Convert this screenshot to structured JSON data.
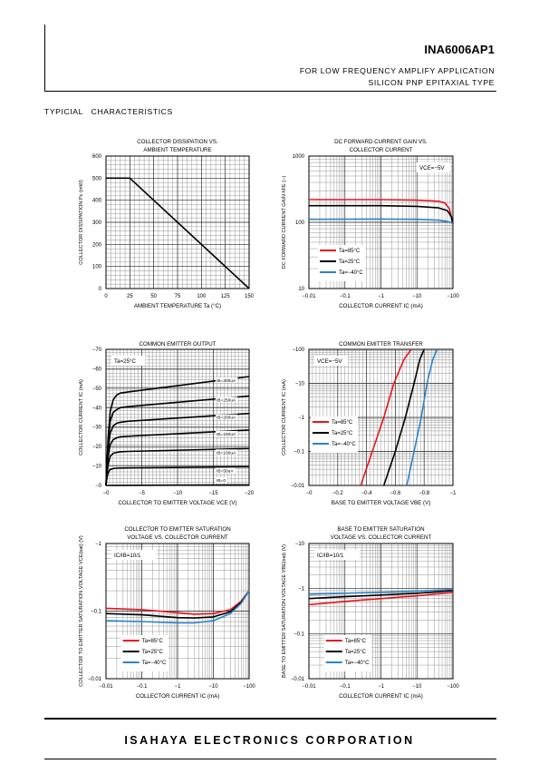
{
  "header": {
    "part_number": "INA6006AP1",
    "line1": "FOR LOW FREQUENCY AMPLIFY APPLICATION",
    "line2": "SILICON PNP EPITAXIAL TYPE"
  },
  "section_title": "TYPICIAL   CHARACTERISTICS",
  "footer": {
    "company": "ISAHAYA ELECTRONICS CORPORATION"
  },
  "chart_data": [
    {
      "id": "c1",
      "type": "line",
      "title": [
        "COLLECTOR DISSIPATION VS.",
        "AMBIENT TEMPERATURE"
      ],
      "xlabel": "AMBIENT TEMPERATURE  Ta (°C)",
      "ylabel": "COLLECTOR DISSIPATION  Pc (mW)",
      "xscale": "lin",
      "yscale": "lin",
      "xlim": [
        0,
        150
      ],
      "ylim": [
        0,
        600
      ],
      "xticks": [
        0,
        25,
        50,
        75,
        100,
        125,
        150
      ],
      "xticklabels": [
        "0",
        "25",
        "50",
        "75",
        "100",
        "125",
        "150"
      ],
      "yticks": [
        0,
        100,
        200,
        300,
        400,
        500,
        600
      ],
      "yticklabels": [
        "0",
        "100",
        "200",
        "300",
        "400",
        "500",
        "600"
      ],
      "series": [
        {
          "color": "#000000",
          "x": [
            0,
            25,
            150
          ],
          "y": [
            500,
            500,
            0
          ]
        }
      ],
      "annotations": []
    },
    {
      "id": "c2",
      "type": "line",
      "title": [
        "DC FORWARD CURRENT GAIN VS.",
        "COLLECTOR CURRENT"
      ],
      "xlabel": "COLLECTOR CURRENT  IC (mA)",
      "ylabel": "DC FORWARD CURRENT GAIN  hFE (−)",
      "xscale": "log",
      "yscale": "log",
      "xlim": [
        0.01,
        100
      ],
      "ylim": [
        10,
        1000
      ],
      "xticks": [
        0.01,
        0.1,
        1,
        10,
        100
      ],
      "xticklabels": [
        "−0.01",
        "−0.1",
        "−1",
        "−10",
        "−100"
      ],
      "yticks": [
        10,
        100,
        1000
      ],
      "yticklabels": [
        "10",
        "100",
        "1000"
      ],
      "series": [
        {
          "name": "Ta=85°C",
          "color": "#e8141c",
          "x": [
            0.01,
            1,
            10,
            40,
            60,
            80,
            100
          ],
          "y": [
            220,
            220,
            216,
            208,
            195,
            160,
            95
          ]
        },
        {
          "name": "Ta=25°C",
          "color": "#000000",
          "x": [
            0.01,
            1,
            10,
            40,
            70,
            90,
            100
          ],
          "y": [
            178,
            178,
            174,
            165,
            150,
            122,
            95
          ]
        },
        {
          "name": "Ta=−40°C",
          "color": "#2b83c8",
          "x": [
            0.01,
            1,
            10,
            40,
            70,
            100
          ],
          "y": [
            111,
            112,
            111,
            108,
            103,
            97
          ]
        }
      ],
      "annotations": [
        "VCE=−5V"
      ],
      "legend_position": "bottom-left"
    },
    {
      "id": "c3",
      "type": "line",
      "title": [
        "COMMON EMITTER OUTPUT"
      ],
      "xlabel": "COLLECTOR TO EMITTER VOLTAGE  VCE (V)",
      "ylabel": "COLLECTOR CURRENT  IC (mA)",
      "xscale": "lin",
      "yscale": "lin",
      "xlim": [
        0,
        20
      ],
      "ylim": [
        0,
        70
      ],
      "xticks": [
        0,
        5,
        10,
        15,
        20
      ],
      "xticklabels": [
        "−0",
        "−5",
        "−10",
        "−15",
        "−20"
      ],
      "yticks": [
        0,
        10,
        20,
        30,
        40,
        50,
        60,
        70
      ],
      "yticklabels": [
        "−0",
        "−10",
        "−20",
        "−30",
        "−40",
        "−50",
        "−60",
        "−70"
      ],
      "series": [
        {
          "name": "IB=300uA",
          "color": "#000000",
          "x": [
            0,
            0.12,
            0.3,
            0.6,
            1,
            1.5,
            2,
            3,
            20
          ],
          "y": [
            0,
            10,
            25,
            38,
            44,
            46.5,
            47.5,
            48,
            56
          ]
        },
        {
          "name": "IB=250uA",
          "color": "#000000",
          "x": [
            0,
            0.12,
            0.3,
            0.6,
            1,
            1.5,
            2,
            3,
            20
          ],
          "y": [
            0,
            9,
            22,
            33,
            37.5,
            39,
            40,
            40.5,
            46
          ]
        },
        {
          "name": "IB=200uA",
          "color": "#000000",
          "x": [
            0,
            0.12,
            0.3,
            0.6,
            1,
            1.5,
            2,
            3,
            20
          ],
          "y": [
            0,
            8,
            19,
            27,
            30.5,
            32,
            32.5,
            33,
            37
          ]
        },
        {
          "name": "IB=150uA",
          "color": "#000000",
          "x": [
            0,
            0.12,
            0.3,
            0.6,
            1,
            1.5,
            2,
            3,
            20
          ],
          "y": [
            0,
            7,
            15,
            21,
            23.5,
            24.5,
            25,
            25.3,
            28.5
          ]
        },
        {
          "name": "IB=100uA",
          "color": "#000000",
          "x": [
            0,
            0.12,
            0.3,
            0.6,
            1,
            1.5,
            2,
            3,
            20
          ],
          "y": [
            0,
            5,
            11,
            15,
            16.5,
            17,
            17.3,
            17.5,
            19
          ]
        },
        {
          "name": "IB=50uA",
          "color": "#000000",
          "x": [
            0,
            0.1,
            0.25,
            0.5,
            1,
            1.5,
            3,
            20
          ],
          "y": [
            0,
            3,
            6,
            8,
            8.7,
            8.9,
            9,
            9.6
          ]
        },
        {
          "name": "IB=0",
          "color": "#000000",
          "x": [
            0,
            20
          ],
          "y": [
            0,
            0.3
          ]
        }
      ],
      "annotations": [
        "Ta=25°C"
      ]
    },
    {
      "id": "c4",
      "type": "line",
      "title": [
        "COMMON EMITTER TRANSFER"
      ],
      "xlabel": "BASE TO EMITTER VOLTAGE  VBE (V)",
      "ylabel": "COLLECTOR CURRENT  IC (mA)",
      "xscale": "lin",
      "yscale": "log",
      "xlim": [
        0,
        1
      ],
      "ylim": [
        0.01,
        100
      ],
      "xticks": [
        0,
        0.2,
        0.4,
        0.6,
        0.8,
        1
      ],
      "xticklabels": [
        "−0",
        "−0.2",
        "−0.4",
        "−0.6",
        "−0.8",
        "−1"
      ],
      "yticks": [
        0.01,
        0.1,
        1,
        10,
        100
      ],
      "yticklabels": [
        "−0.01",
        "−0.1",
        "−1",
        "−10",
        "−100"
      ],
      "series": [
        {
          "name": "Ta=85°C",
          "color": "#e8141c",
          "x": [
            0.36,
            0.44,
            0.52,
            0.59,
            0.66,
            0.71
          ],
          "y": [
            0.01,
            0.1,
            1,
            10,
            50,
            100
          ]
        },
        {
          "name": "Ta=25°C",
          "color": "#000000",
          "x": [
            0.52,
            0.6,
            0.67,
            0.73,
            0.77,
            0.8
          ],
          "y": [
            0.01,
            0.1,
            1,
            10,
            50,
            100
          ]
        },
        {
          "name": "Ta=−40°C",
          "color": "#2b83c8",
          "x": [
            0.68,
            0.73,
            0.78,
            0.82,
            0.86,
            0.89
          ],
          "y": [
            0.01,
            0.1,
            1,
            10,
            50,
            100
          ]
        }
      ],
      "annotations": [
        "VCE=−5V"
      ],
      "legend_position": "bottom-left"
    },
    {
      "id": "c5",
      "type": "line",
      "title": [
        "COLLECTOR TO EMITTER SATURATION",
        "VOLTAGE VS. COLLECTOR CURRENT"
      ],
      "xlabel": "COLLECTOR CURRENT  IC (mA)",
      "ylabel": "COLLECTOR TO EMITTER SATURATION VOLTAGE  VCE(sat) (V)",
      "xscale": "log",
      "yscale": "log",
      "xlim": [
        0.01,
        100
      ],
      "ylim": [
        0.01,
        1
      ],
      "xticks": [
        0.01,
        0.1,
        1,
        10,
        100
      ],
      "xticklabels": [
        "−0.01",
        "−0.1",
        "−1",
        "−10",
        "−100"
      ],
      "yticks": [
        0.01,
        0.1,
        1
      ],
      "yticklabels": [
        "−0.01",
        "−0.1",
        "−1"
      ],
      "series": [
        {
          "name": "Ta=85°C",
          "color": "#e8141c",
          "x": [
            0.01,
            0.1,
            1,
            3,
            10,
            30,
            60,
            100
          ],
          "y": [
            0.11,
            0.105,
            0.095,
            0.09,
            0.092,
            0.105,
            0.14,
            0.2
          ]
        },
        {
          "name": "Ta=25°C",
          "color": "#000000",
          "x": [
            0.01,
            0.1,
            1,
            3,
            10,
            30,
            60,
            100
          ],
          "y": [
            0.092,
            0.088,
            0.08,
            0.079,
            0.082,
            0.098,
            0.135,
            0.2
          ]
        },
        {
          "name": "Ta=−40°C",
          "color": "#2b83c8",
          "x": [
            0.01,
            0.1,
            1,
            3,
            10,
            30,
            60,
            100
          ],
          "y": [
            0.072,
            0.07,
            0.067,
            0.067,
            0.072,
            0.092,
            0.13,
            0.2
          ]
        }
      ],
      "annotations": [
        "IC/IB=10/1"
      ],
      "legend_position": "bottom-left"
    },
    {
      "id": "c6",
      "type": "line",
      "title": [
        "BASE TO EMITTER SATURATION",
        "VOLTAGE VS. COLLECTOR CURRENT"
      ],
      "xlabel": "COLLECTOR CURRENT  IC (mA)",
      "ylabel": "BASE TO EMITTER SATURATION VOLTAGE  VBE(sat) (V)",
      "xscale": "log",
      "yscale": "log",
      "xlim": [
        0.01,
        100
      ],
      "ylim": [
        0.01,
        10
      ],
      "xticks": [
        0.01,
        0.1,
        1,
        10,
        100
      ],
      "xticklabels": [
        "−0.01",
        "−0.1",
        "−1",
        "−10",
        "−100"
      ],
      "yticks": [
        0.01,
        0.1,
        1,
        10
      ],
      "yticklabels": [
        "−0.01",
        "−0.1",
        "−1",
        "−10"
      ],
      "series": [
        {
          "name": "Ta=85°C",
          "color": "#e8141c",
          "x": [
            0.01,
            0.1,
            1,
            10,
            100
          ],
          "y": [
            0.44,
            0.52,
            0.6,
            0.69,
            0.82
          ]
        },
        {
          "name": "Ta=25°C",
          "color": "#000000",
          "x": [
            0.01,
            0.1,
            1,
            10,
            100
          ],
          "y": [
            0.6,
            0.66,
            0.72,
            0.79,
            0.9
          ]
        },
        {
          "name": "Ta=−40°C",
          "color": "#2b83c8",
          "x": [
            0.01,
            0.1,
            1,
            10,
            100
          ],
          "y": [
            0.75,
            0.79,
            0.83,
            0.88,
            0.96
          ]
        }
      ],
      "annotations": [
        "IC/IB=10/1"
      ],
      "legend_position": "bottom-left"
    }
  ]
}
